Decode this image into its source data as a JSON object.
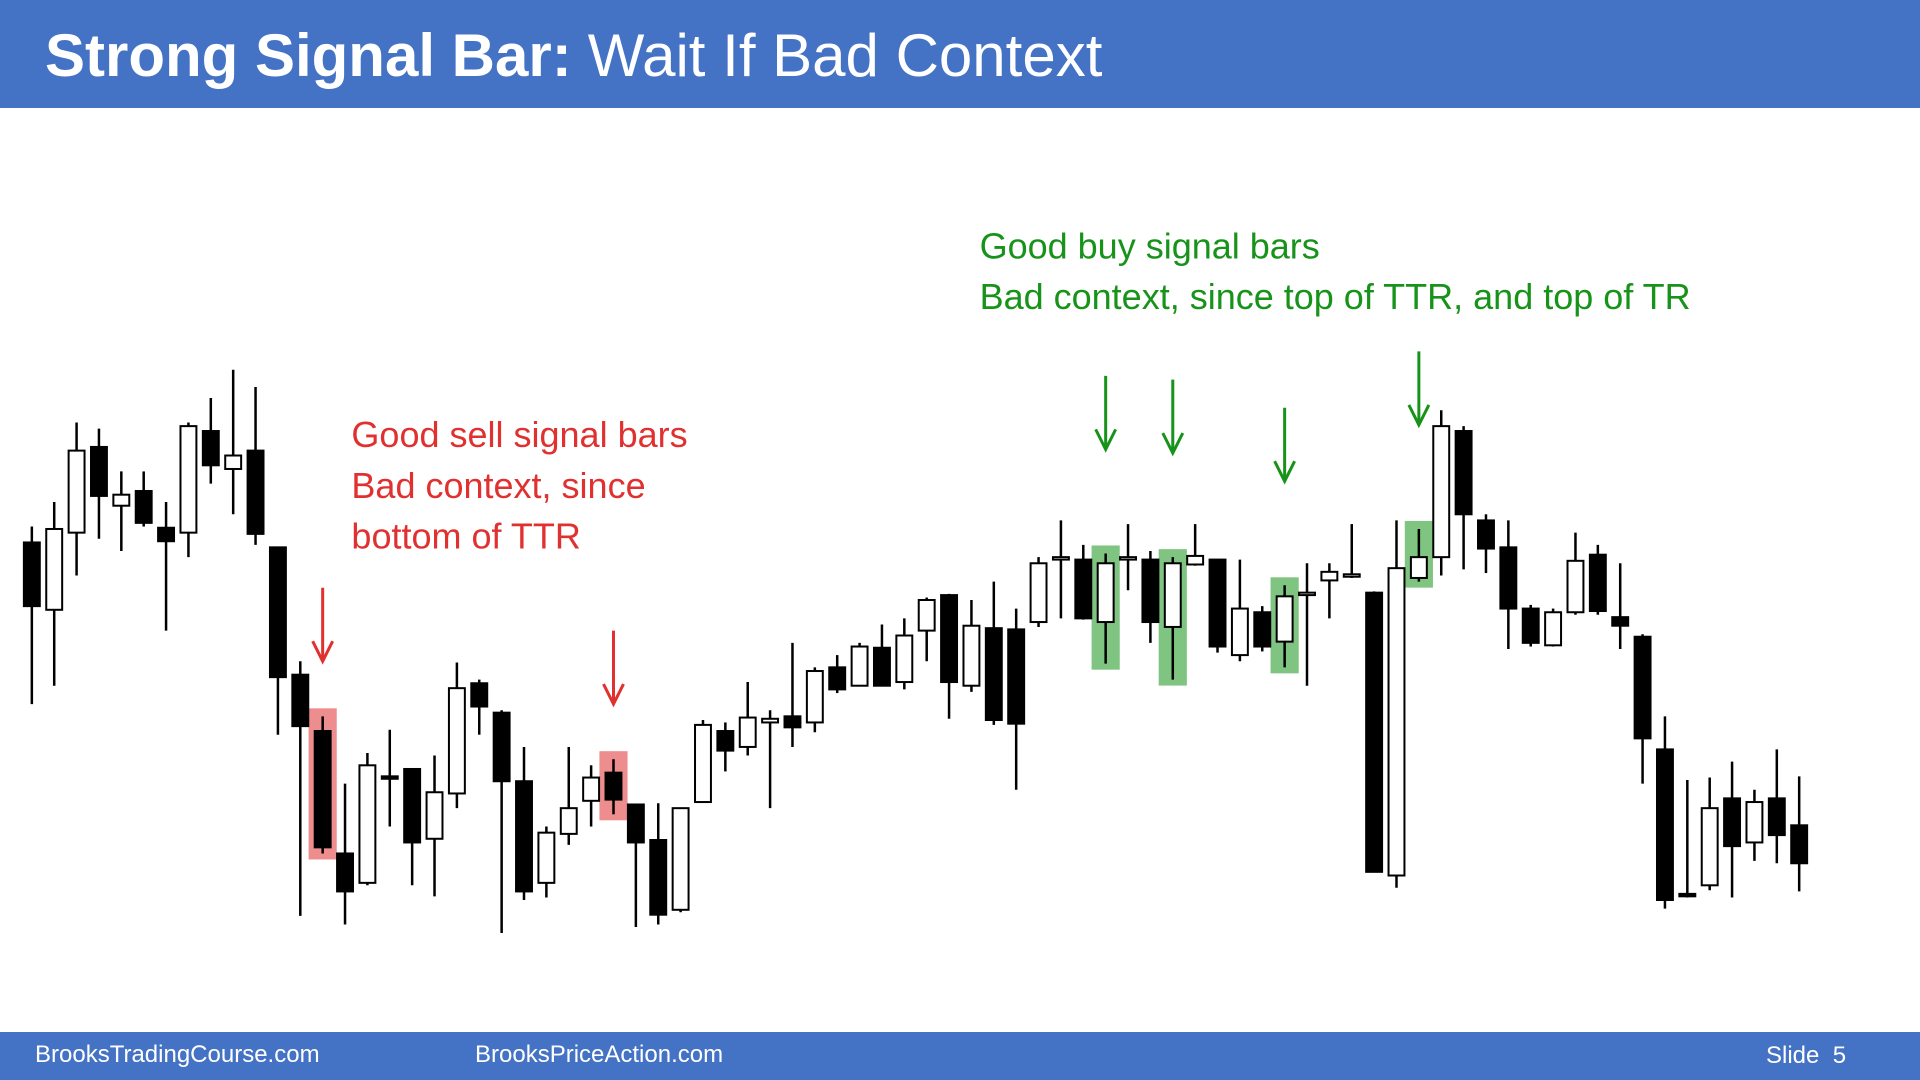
{
  "header": {
    "title_lead": "Strong Signal Bar:",
    "title_rest": "Wait If Bad Context"
  },
  "chart_data": {
    "type": "candlestick",
    "open": [
      557,
      502,
      565,
      635,
      587,
      599,
      569,
      565,
      648,
      617,
      632,
      553,
      449,
      403,
      303,
      279,
      366,
      372,
      315,
      352,
      442,
      418,
      362,
      279,
      319,
      346,
      369,
      343,
      314,
      257,
      345,
      403,
      390,
      410,
      415,
      410,
      455,
      440,
      471,
      443,
      485,
      514,
      440,
      487,
      486,
      492,
      543,
      543,
      492,
      543,
      543,
      488,
      539,
      543,
      465,
      500,
      476,
      514,
      526,
      529,
      516,
      285,
      528,
      545,
      648,
      575,
      553,
      503,
      473,
      500,
      547,
      496,
      480,
      388,
      270,
      277,
      348,
      312,
      348,
      326
    ],
    "high": [
      570,
      590,
      655,
      650,
      615,
      615,
      590,
      655,
      675,
      698,
      684,
      553,
      460,
      415,
      360,
      385,
      404,
      372,
      383,
      459,
      445,
      420,
      390,
      325,
      390,
      375,
      380,
      343,
      344,
      340,
      412,
      410,
      443,
      420,
      475,
      455,
      465,
      475,
      490,
      495,
      512,
      515,
      510,
      525,
      503,
      545,
      575,
      555,
      548,
      572,
      550,
      545,
      572,
      543,
      543,
      505,
      522,
      540,
      540,
      572,
      517,
      575,
      568,
      665,
      652,
      580,
      575,
      506,
      503,
      565,
      555,
      540,
      482,
      415,
      363,
      365,
      378,
      355,
      388,
      366
    ],
    "low": [
      425,
      440,
      530,
      560,
      550,
      570,
      485,
      545,
      605,
      580,
      555,
      400,
      252,
      303,
      245,
      277,
      325,
      277,
      268,
      340,
      400,
      238,
      265,
      267,
      310,
      325,
      335,
      243,
      245,
      255,
      345,
      370,
      383,
      340,
      390,
      402,
      434,
      440,
      440,
      437,
      460,
      413,
      435,
      408,
      355,
      488,
      495,
      494,
      458,
      518,
      475,
      445,
      538,
      467,
      460,
      468,
      455,
      440,
      495,
      528,
      288,
      275,
      525,
      530,
      535,
      532,
      470,
      472,
      472,
      498,
      498,
      470,
      360,
      258,
      267,
      273,
      267,
      297,
      295,
      272
    ],
    "close": [
      505,
      568,
      632,
      595,
      596,
      573,
      558,
      652,
      620,
      628,
      564,
      447,
      407,
      308,
      272,
      375,
      364,
      312,
      353,
      438,
      423,
      362,
      272,
      320,
      340,
      365,
      347,
      312,
      253,
      340,
      408,
      387,
      414,
      413,
      406,
      452,
      437,
      472,
      440,
      481,
      510,
      443,
      489,
      412,
      409,
      540,
      545,
      495,
      540,
      545,
      492,
      540,
      546,
      472,
      503,
      472,
      513,
      516,
      533,
      531,
      288,
      536,
      545,
      652,
      580,
      552,
      503,
      475,
      500,
      542,
      501,
      489,
      397,
      265,
      268,
      340,
      309,
      345,
      318,
      295
    ],
    "ylim": [
      200,
      750
    ],
    "up_color": "#ffffff",
    "down_color": "#000000",
    "sell_signal_bars": [
      13,
      26
    ],
    "buy_signal_bars": [
      48,
      51,
      56,
      62
    ],
    "sell_color": "#e0302f",
    "buy_color": "#17931a",
    "annotations": [
      {
        "lines": [
          "Good sell signal bars",
          "Bad context, since",
          "bottom of TTR"
        ],
        "color": "#e0302f"
      },
      {
        "lines": [
          "Good buy signal bars",
          "Bad context, since top of TTR, and top of TR"
        ],
        "color": "#17931a"
      }
    ]
  },
  "footer": {
    "left": "BrooksTradingCourse.com",
    "center": "BrooksPriceAction.com",
    "slide": "Slide  5"
  }
}
